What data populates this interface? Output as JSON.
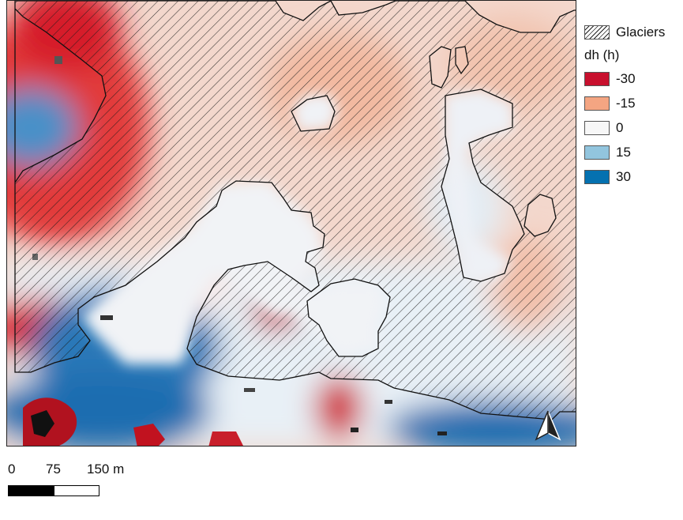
{
  "legend": {
    "glacier_label": "Glaciers",
    "dh_title": "dh (h)",
    "classes": [
      {
        "label": "-30",
        "color": "#c8102e"
      },
      {
        "label": "-15",
        "color": "#f4a582"
      },
      {
        "label": "0",
        "color": "#f7f7f7"
      },
      {
        "label": "15",
        "color": "#92c5de"
      },
      {
        "label": "30",
        "color": "#0571b0"
      }
    ]
  },
  "scalebar": {
    "labels": [
      "0",
      "75",
      "150 m"
    ]
  },
  "north_arrow": {
    "icon": "north-arrow-icon"
  }
}
